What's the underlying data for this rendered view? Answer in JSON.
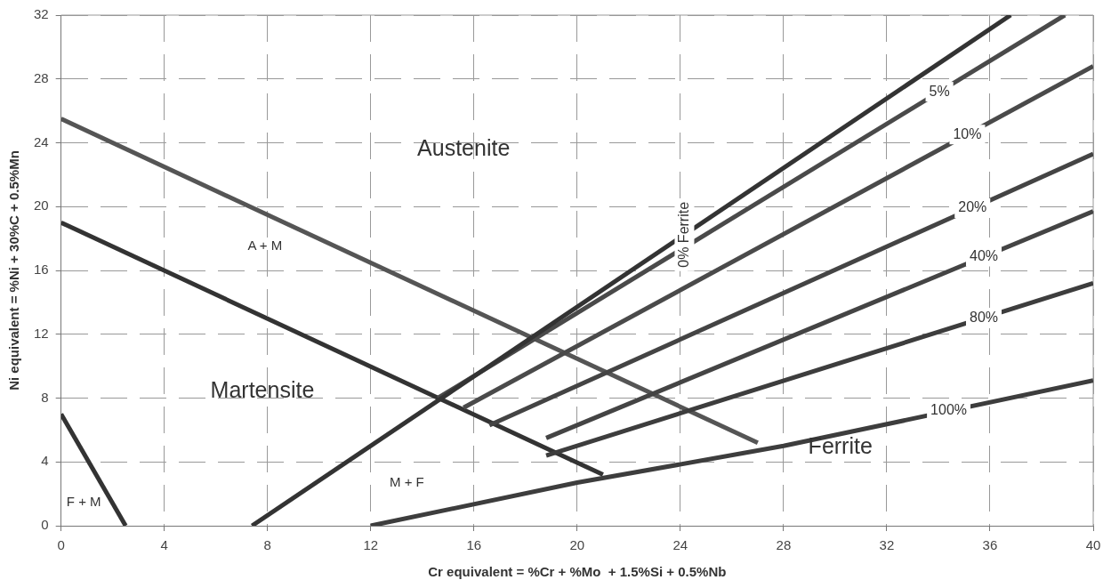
{
  "chart_data": {
    "type": "line",
    "xlabel": "Cr equivalent = %Cr + %Mo  + 1.5%Si + 0.5%Nb",
    "ylabel": "Ni equivalent = %Ni + 30%C + 0.5%Mn",
    "xlim": [
      0,
      40
    ],
    "xticks": [
      0,
      4,
      8,
      12,
      16,
      20,
      24,
      28,
      32,
      36,
      40
    ],
    "ylim": [
      0,
      32
    ],
    "yticks": [
      0,
      4,
      8,
      12,
      16,
      20,
      24,
      28,
      32
    ],
    "grid": true,
    "legend": false,
    "marker": "none",
    "line_style": "solid",
    "series": [
      {
        "name": "0% Ferrite",
        "color": "#333333",
        "x": [
          7.4,
          36.8
        ],
        "values": [
          0,
          32
        ]
      },
      {
        "name": "5%",
        "color": "#4a4a4a",
        "x": [
          14.6,
          38.9
        ],
        "values": [
          8,
          32
        ]
      },
      {
        "name": "10%",
        "color": "#4a4a4a",
        "x": [
          15.6,
          40
        ],
        "values": [
          7.4,
          28.8
        ]
      },
      {
        "name": "20%",
        "color": "#444444",
        "x": [
          16.6,
          40
        ],
        "values": [
          6.3,
          23.3
        ]
      },
      {
        "name": "40%",
        "color": "#444444",
        "x": [
          18.8,
          40
        ],
        "values": [
          5.5,
          19.7
        ]
      },
      {
        "name": "80%",
        "color": "#3d3d3d",
        "x": [
          18.8,
          40
        ],
        "values": [
          4.4,
          15.2
        ]
      },
      {
        "name": "100%",
        "color": "#3d3d3d",
        "x": [
          12,
          20,
          28,
          40
        ],
        "values": [
          0,
          2.7,
          5,
          9.1
        ]
      },
      {
        "color": "#555555",
        "x": [
          0,
          27
        ],
        "values": [
          25.5,
          5.2
        ]
      },
      {
        "color": "#333333",
        "x": [
          0,
          21
        ],
        "values": [
          19,
          3.2
        ]
      },
      {
        "color": "#333333",
        "x": [
          0,
          2.5
        ],
        "values": [
          7,
          0
        ]
      }
    ],
    "annotations": [
      "Austenite",
      "Martensite",
      "Ferrite",
      "A + M",
      "M + F",
      "F + M"
    ]
  }
}
